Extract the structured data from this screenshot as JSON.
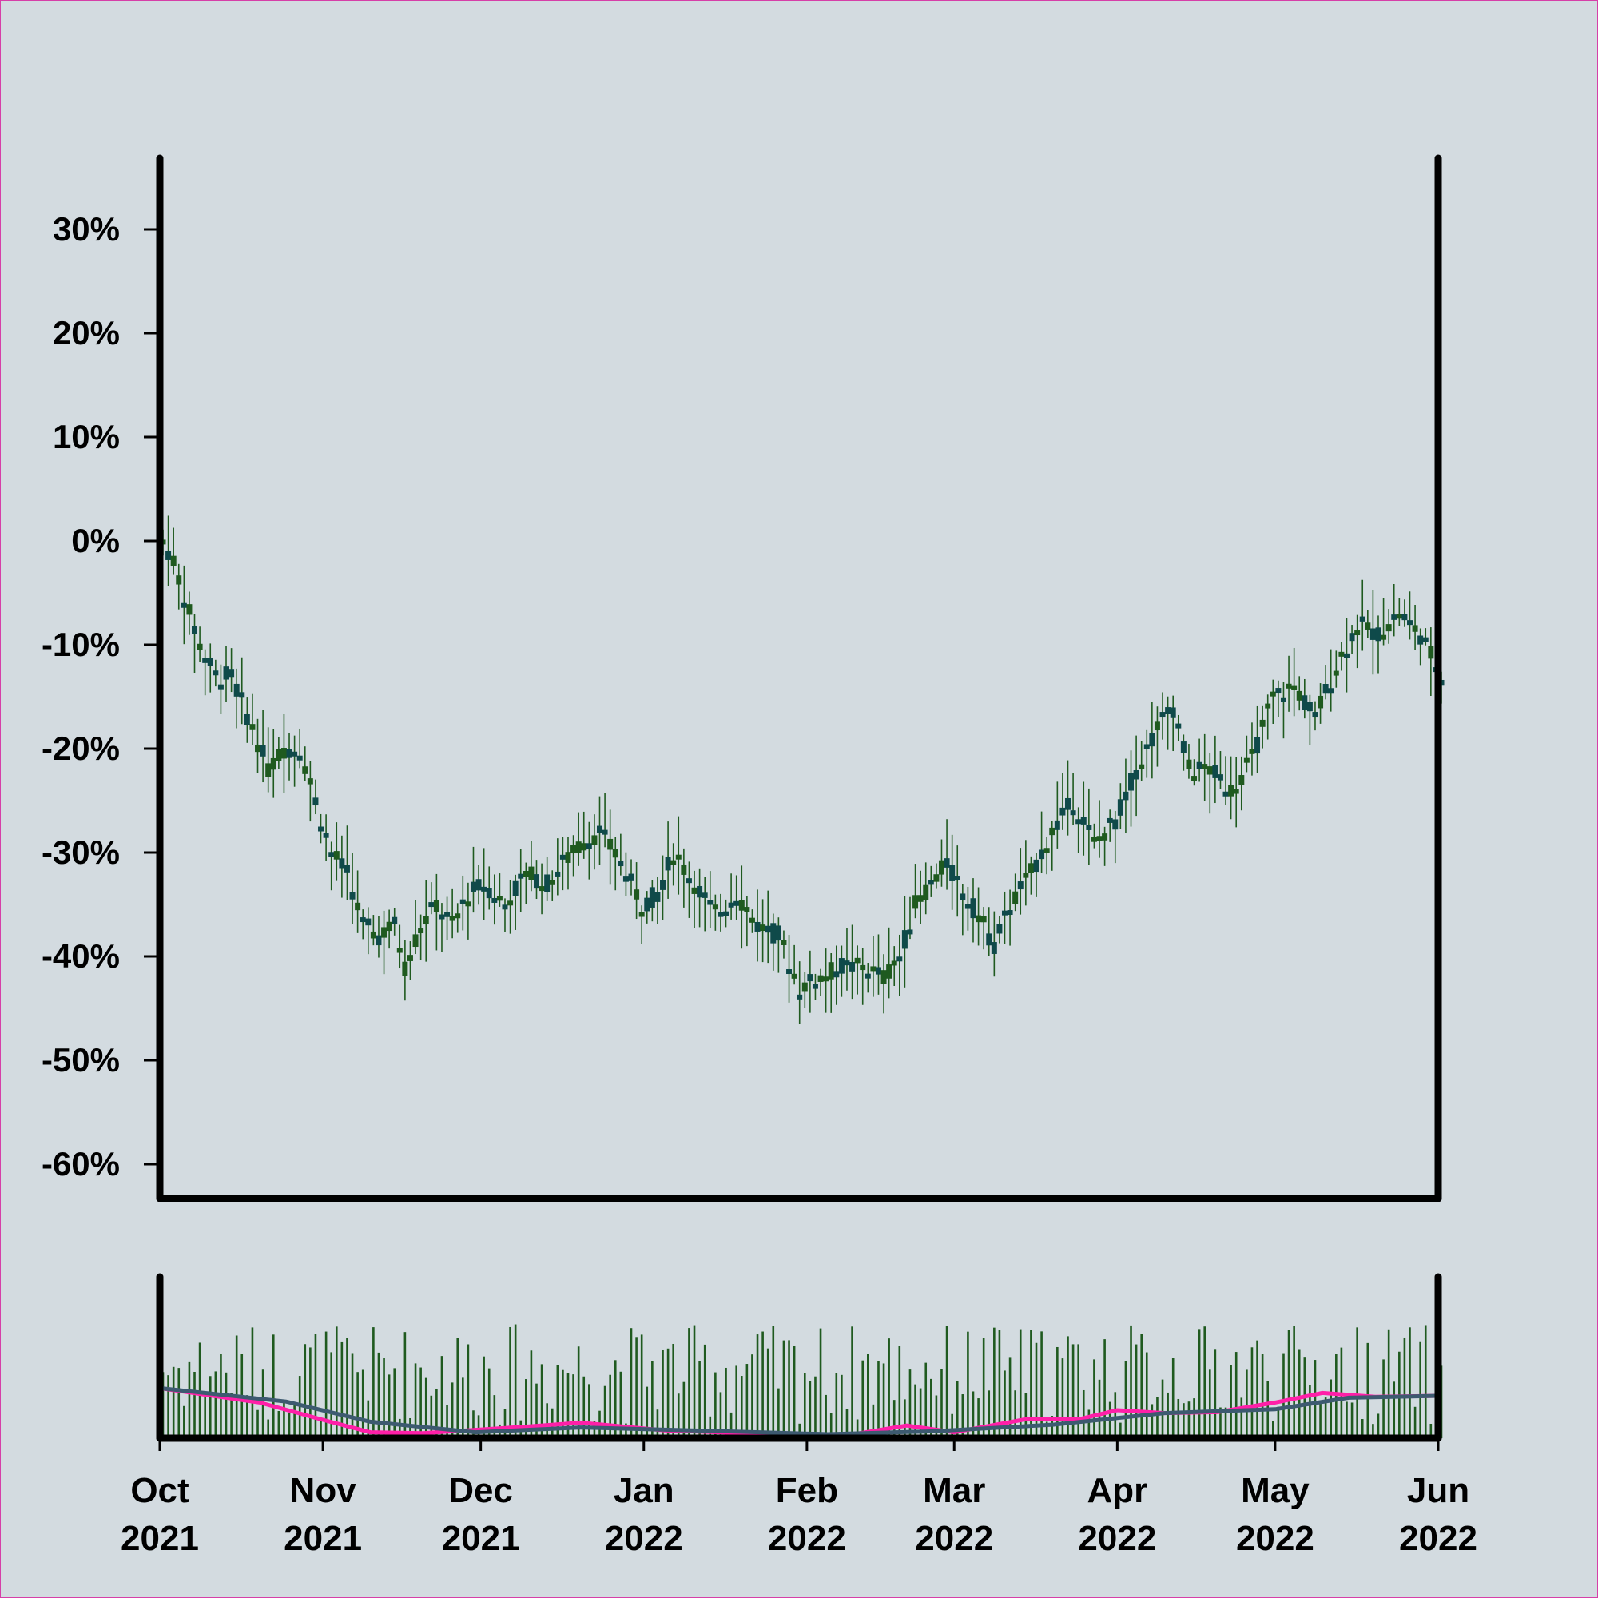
{
  "chart_data": {
    "type": "candlestick",
    "title": "",
    "xlabel": "",
    "ylabel": "",
    "x_start": "2021-10-01",
    "x_end": "2022-06-01",
    "ylim": [
      -64,
      37
    ],
    "y_ticks": [
      {
        "value": 30,
        "label": "30%"
      },
      {
        "value": 20,
        "label": "20%"
      },
      {
        "value": 10,
        "label": "10%"
      },
      {
        "value": 0,
        "label": "0%"
      },
      {
        "value": -10,
        "label": "-10%"
      },
      {
        "value": -20,
        "label": "-20%"
      },
      {
        "value": -30,
        "label": "-30%"
      },
      {
        "value": -40,
        "label": "-40%"
      },
      {
        "value": -50,
        "label": "-50%"
      },
      {
        "value": -60,
        "label": "-60%"
      }
    ],
    "x_ticks": [
      {
        "date": "2021-10-01",
        "month": "Oct",
        "year": "2021"
      },
      {
        "date": "2021-11-01",
        "month": "Nov",
        "year": "2021"
      },
      {
        "date": "2021-12-01",
        "month": "Dec",
        "year": "2021"
      },
      {
        "date": "2022-01-01",
        "month": "Jan",
        "year": "2022"
      },
      {
        "date": "2022-02-01",
        "month": "Feb",
        "year": "2022"
      },
      {
        "date": "2022-03-01",
        "month": "Mar",
        "year": "2022"
      },
      {
        "date": "2022-04-01",
        "month": "Apr",
        "year": "2022"
      },
      {
        "date": "2022-05-01",
        "month": "May",
        "year": "2022"
      },
      {
        "date": "2022-06-01",
        "month": "Jun",
        "year": "2022"
      }
    ],
    "price_close_path": [
      [
        "2021-10-01",
        0
      ],
      [
        "2021-10-03",
        -2
      ],
      [
        "2021-10-06",
        -7
      ],
      [
        "2021-10-08",
        -10
      ],
      [
        "2021-10-11",
        -13
      ],
      [
        "2021-10-14",
        -13
      ],
      [
        "2021-10-18",
        -18
      ],
      [
        "2021-10-21",
        -22
      ],
      [
        "2021-10-24",
        -20
      ],
      [
        "2021-10-27",
        -20
      ],
      [
        "2021-10-30",
        -25
      ],
      [
        "2021-11-02",
        -30
      ],
      [
        "2021-11-05",
        -32
      ],
      [
        "2021-11-08",
        -37
      ],
      [
        "2021-11-11",
        -38
      ],
      [
        "2021-11-14",
        -37
      ],
      [
        "2021-11-16",
        -41
      ],
      [
        "2021-11-19",
        -37
      ],
      [
        "2021-11-22",
        -35
      ],
      [
        "2021-11-25",
        -37
      ],
      [
        "2021-11-28",
        -34
      ],
      [
        "2021-12-01",
        -33
      ],
      [
        "2021-12-05",
        -35
      ],
      [
        "2021-12-09",
        -32
      ],
      [
        "2021-12-13",
        -33
      ],
      [
        "2021-12-16",
        -31
      ],
      [
        "2021-12-20",
        -29
      ],
      [
        "2021-12-23",
        -28
      ],
      [
        "2021-12-27",
        -31
      ],
      [
        "2021-12-31",
        -35
      ],
      [
        "2022-01-03",
        -34
      ],
      [
        "2022-01-06",
        -30
      ],
      [
        "2022-01-10",
        -33
      ],
      [
        "2022-01-14",
        -36
      ],
      [
        "2022-01-18",
        -34
      ],
      [
        "2022-01-22",
        -37
      ],
      [
        "2022-01-26",
        -38
      ],
      [
        "2022-01-30",
        -43
      ],
      [
        "2022-02-03",
        -42
      ],
      [
        "2022-02-07",
        -41
      ],
      [
        "2022-02-11",
        -41
      ],
      [
        "2022-02-15",
        -42
      ],
      [
        "2022-02-18",
        -40
      ],
      [
        "2022-02-21",
        -35
      ],
      [
        "2022-02-24",
        -33
      ],
      [
        "2022-02-27",
        -31
      ],
      [
        "2022-03-02",
        -34
      ],
      [
        "2022-03-05",
        -36
      ],
      [
        "2022-03-08",
        -39
      ],
      [
        "2022-03-11",
        -35
      ],
      [
        "2022-03-15",
        -32
      ],
      [
        "2022-03-19",
        -28
      ],
      [
        "2022-03-23",
        -25
      ],
      [
        "2022-03-27",
        -29
      ],
      [
        "2022-03-31",
        -27
      ],
      [
        "2022-04-04",
        -22
      ],
      [
        "2022-04-08",
        -18
      ],
      [
        "2022-04-11",
        -16
      ],
      [
        "2022-04-14",
        -22
      ],
      [
        "2022-04-18",
        -22
      ],
      [
        "2022-04-22",
        -24
      ],
      [
        "2022-04-26",
        -21
      ],
      [
        "2022-04-30",
        -15
      ],
      [
        "2022-05-04",
        -14
      ],
      [
        "2022-05-08",
        -17
      ],
      [
        "2022-05-12",
        -12
      ],
      [
        "2022-05-16",
        -8
      ],
      [
        "2022-05-20",
        -9
      ],
      [
        "2022-05-24",
        -7
      ],
      [
        "2022-05-28",
        -9
      ],
      [
        "2022-06-01",
        -13
      ]
    ],
    "volume_ma_fast": [
      [
        "2021-10-01",
        0.48
      ],
      [
        "2021-10-20",
        0.33
      ],
      [
        "2021-11-01",
        0.15
      ],
      [
        "2021-11-10",
        0.02
      ],
      [
        "2021-11-20",
        0.01
      ],
      [
        "2021-12-10",
        0.08
      ],
      [
        "2021-12-20",
        0.12
      ],
      [
        "2022-01-05",
        0.04
      ],
      [
        "2022-01-25",
        0.0
      ],
      [
        "2022-02-10",
        0.0
      ],
      [
        "2022-02-20",
        0.09
      ],
      [
        "2022-03-01",
        0.02
      ],
      [
        "2022-03-15",
        0.16
      ],
      [
        "2022-03-25",
        0.16
      ],
      [
        "2022-04-01",
        0.25
      ],
      [
        "2022-04-10",
        0.22
      ],
      [
        "2022-04-20",
        0.23
      ],
      [
        "2022-05-01",
        0.33
      ],
      [
        "2022-05-10",
        0.43
      ],
      [
        "2022-05-20",
        0.39
      ],
      [
        "2022-06-01",
        0.4
      ]
    ],
    "volume_ma_slow": [
      [
        "2021-10-01",
        0.48
      ],
      [
        "2021-10-25",
        0.34
      ],
      [
        "2021-11-10",
        0.13
      ],
      [
        "2021-11-30",
        0.02
      ],
      [
        "2021-12-20",
        0.07
      ],
      [
        "2022-01-10",
        0.04
      ],
      [
        "2022-02-05",
        0.0
      ],
      [
        "2022-02-25",
        0.03
      ],
      [
        "2022-03-20",
        0.1
      ],
      [
        "2022-04-10",
        0.22
      ],
      [
        "2022-05-01",
        0.26
      ],
      [
        "2022-05-15",
        0.38
      ],
      [
        "2022-06-01",
        0.4
      ]
    ],
    "colors": {
      "background": "#d3dbe0",
      "candle_up": "#1f5a1f",
      "candle_down": "#0f4a4a",
      "volume_bar": "#1f5a1f",
      "ma_fast": "#ff1fa8",
      "ma_slow": "#3d5a70",
      "axis": "#000000",
      "frame": "#d63fa8"
    }
  }
}
